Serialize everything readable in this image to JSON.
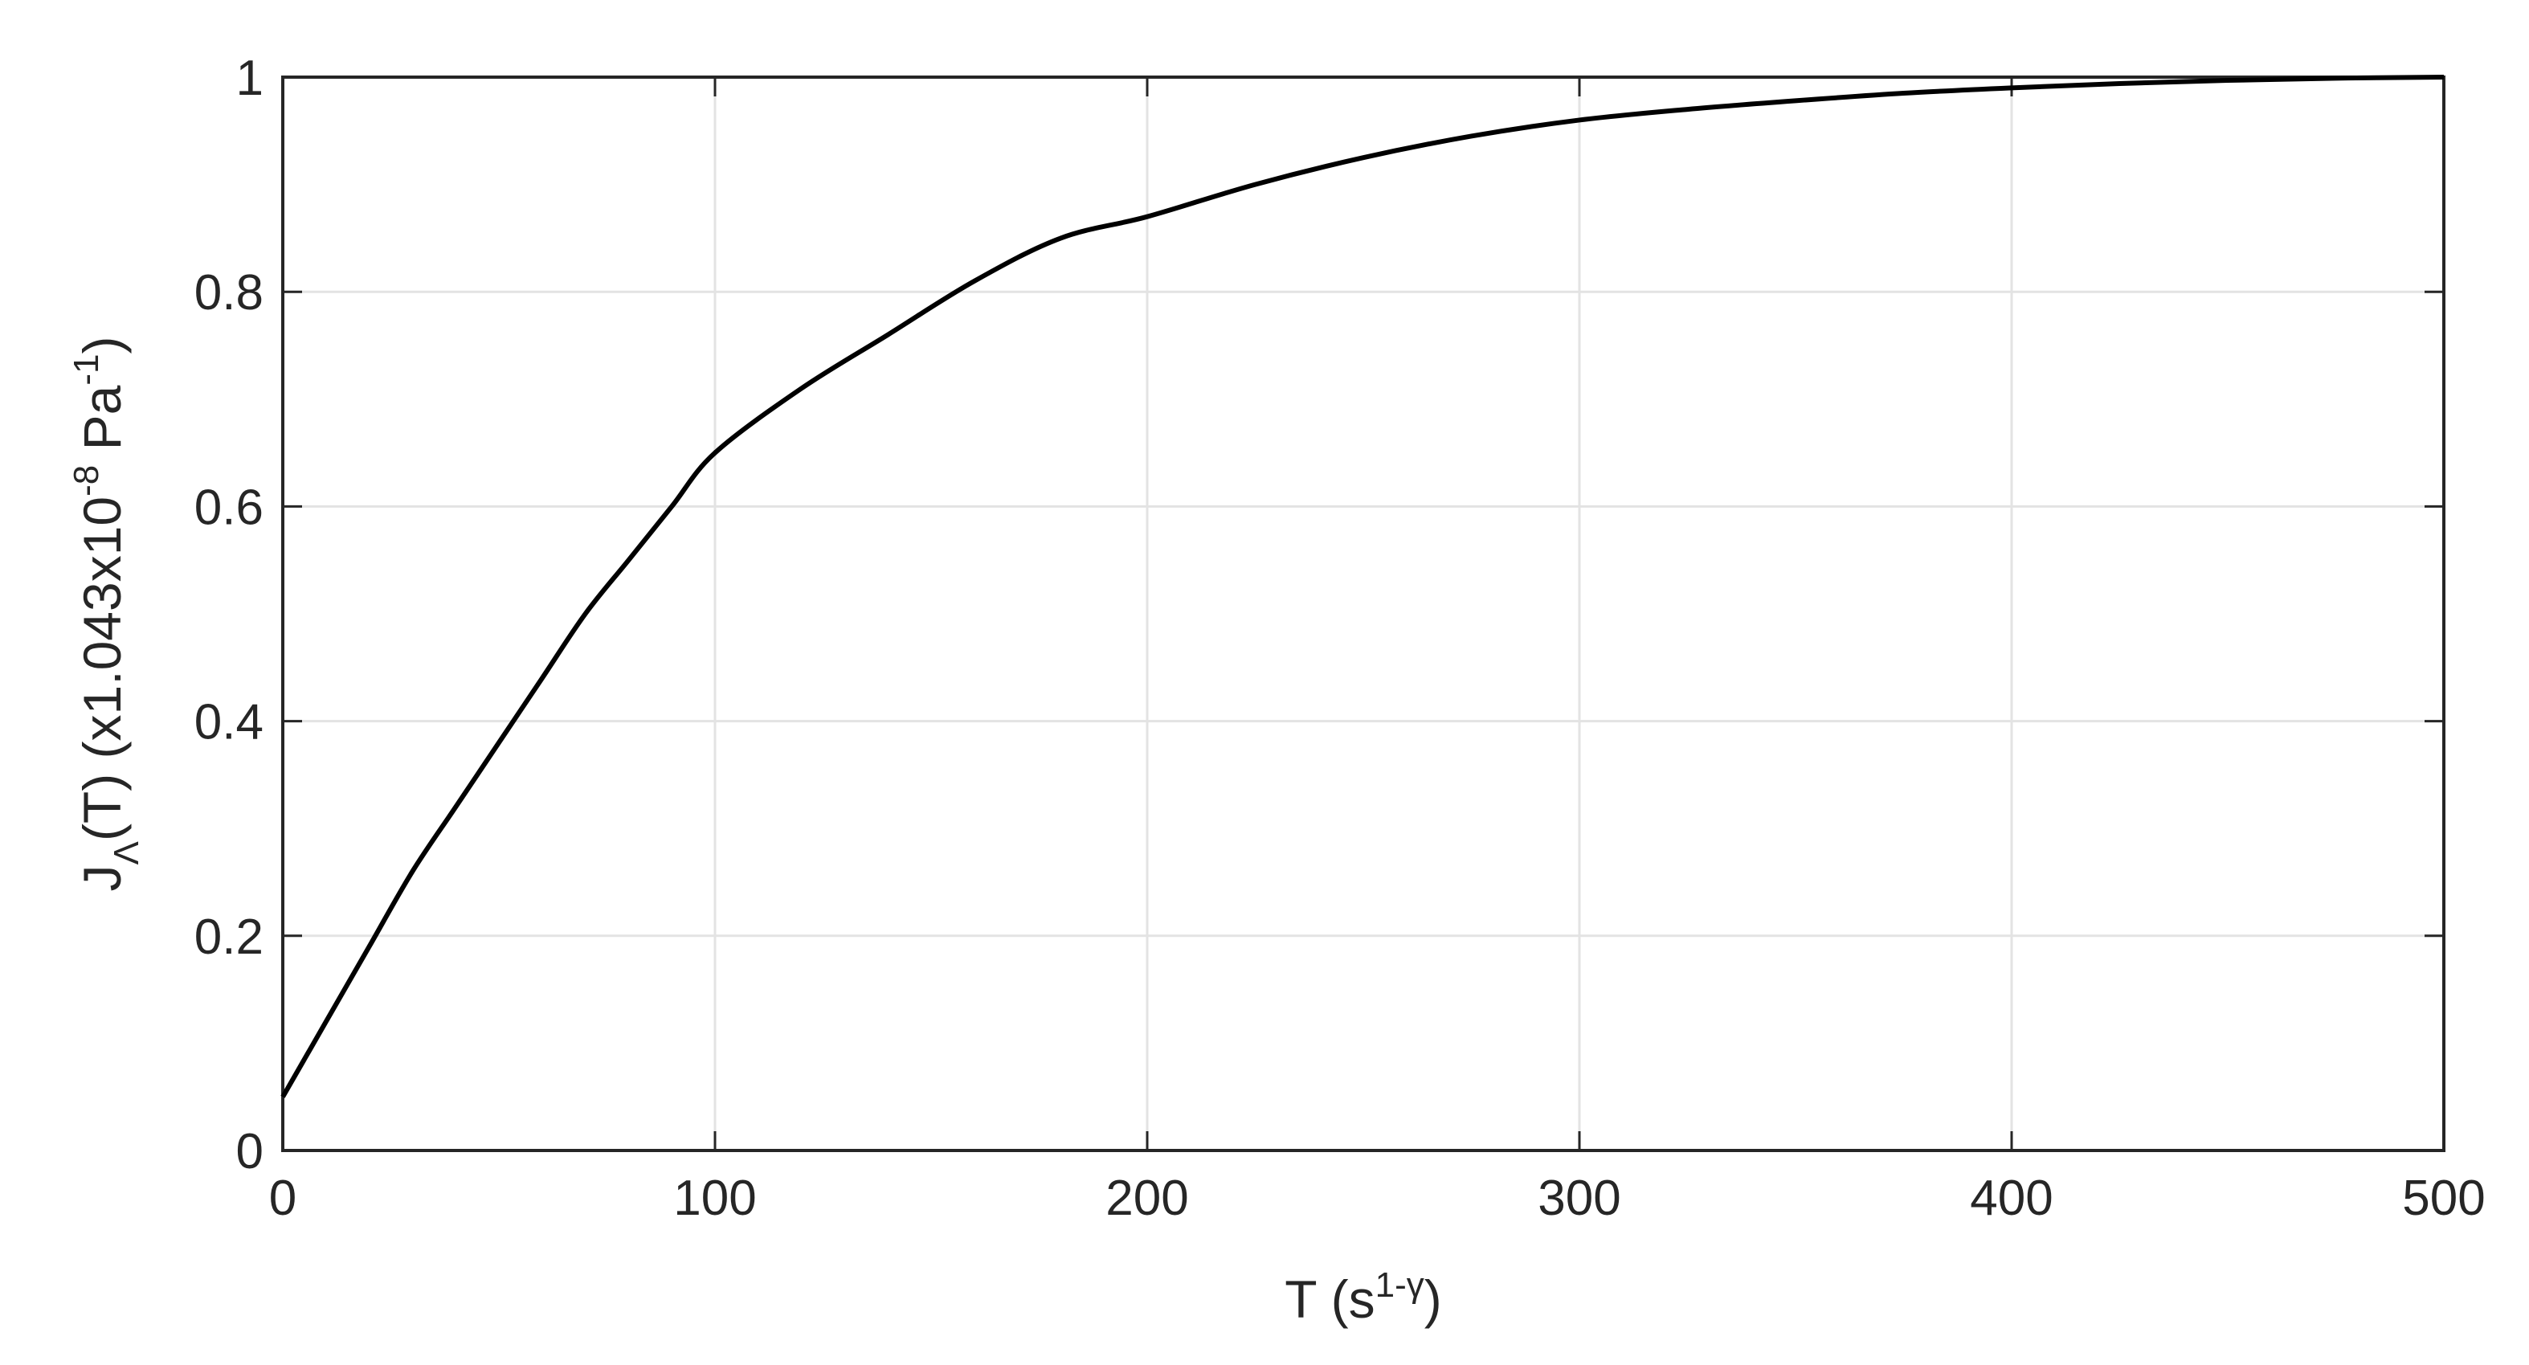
{
  "chart_data": {
    "type": "line",
    "xlabel": {
      "main": "T",
      "unit_open": " (s",
      "unit_sup": "1-γ",
      "unit_close": ")"
    },
    "ylabel": {
      "main": "J",
      "sub": "Λ",
      "arg": "(T) (x1.043x10",
      "exp": "-8",
      "unit": "  Pa",
      "unit_exp": "-1",
      "close": ")"
    },
    "xlim": [
      0,
      500
    ],
    "ylim": [
      0,
      1
    ],
    "xticks": [
      0,
      100,
      200,
      300,
      400,
      500
    ],
    "xtick_labels": [
      "0",
      "100",
      "200",
      "300",
      "400",
      "500"
    ],
    "yticks": [
      0,
      0.2,
      0.4,
      0.6,
      0.8,
      1
    ],
    "ytick_labels": [
      "0",
      "0.2",
      "0.4",
      "0.6",
      "0.8",
      "1"
    ],
    "grid": true,
    "series": [
      {
        "color": "#000000",
        "x": [
          0,
          10,
          20,
          30,
          40,
          50,
          60,
          70,
          80,
          90,
          100,
          120,
          140,
          160,
          180,
          200,
          225,
          250,
          275,
          300,
          325,
          350,
          375,
          400,
          425,
          450,
          475,
          500
        ],
        "y": [
          0.05,
          0.12,
          0.19,
          0.26,
          0.32,
          0.38,
          0.44,
          0.5,
          0.55,
          0.6,
          0.65,
          0.71,
          0.76,
          0.81,
          0.85,
          0.87,
          0.9,
          0.925,
          0.945,
          0.96,
          0.97,
          0.978,
          0.985,
          0.99,
          0.994,
          0.997,
          0.999,
          1.0
        ]
      }
    ]
  }
}
